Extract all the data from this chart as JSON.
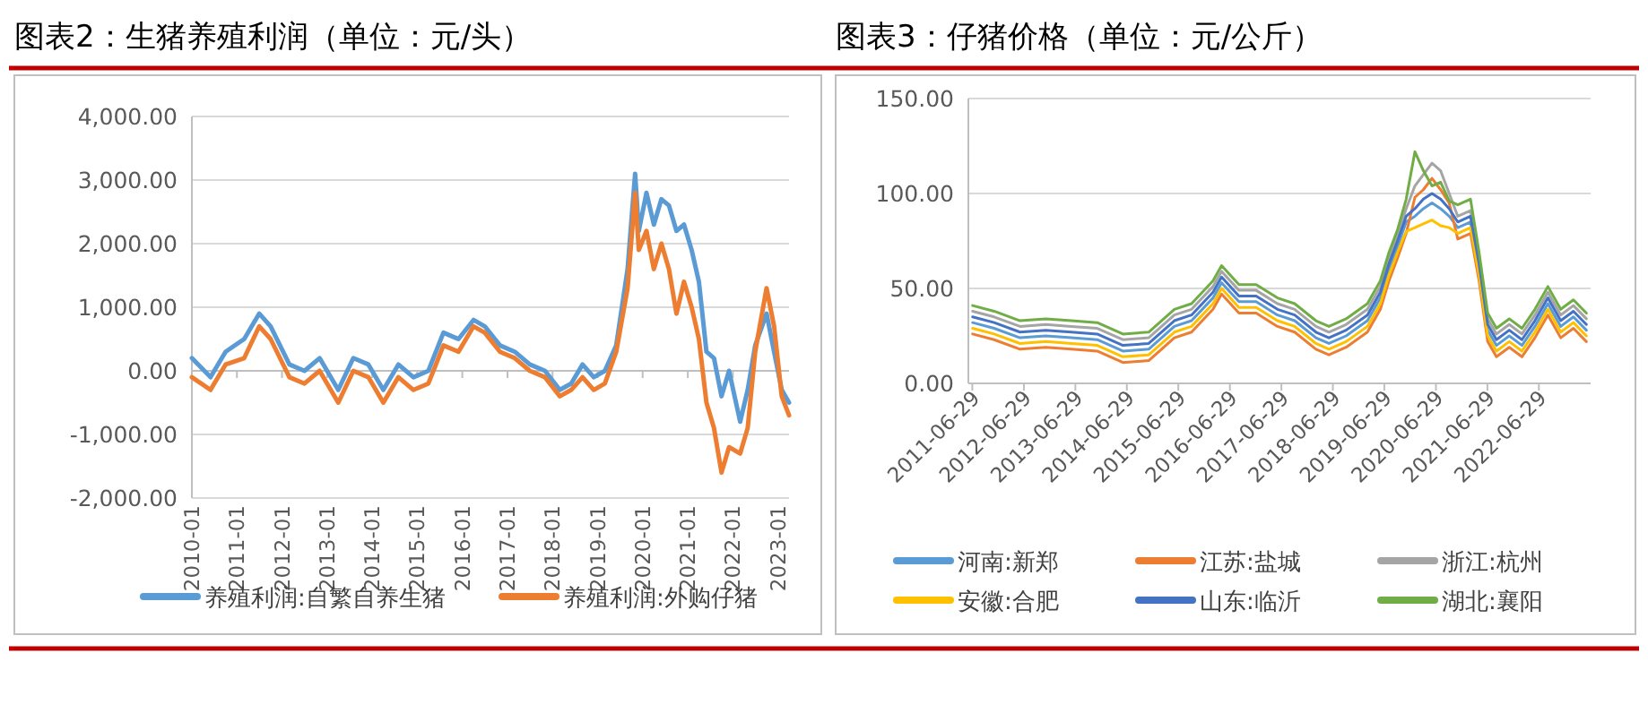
{
  "chart_data": [
    {
      "type": "line",
      "title": "图表2：生猪养殖利润（单位：元/头）",
      "grid": "y",
      "legend": "bottom",
      "xlim": [
        "2010-01",
        "2023-04"
      ],
      "xticks": [
        "2010-01",
        "2011-01",
        "2012-01",
        "2013-01",
        "2014-01",
        "2015-01",
        "2016-01",
        "2017-01",
        "2018-01",
        "2019-01",
        "2020-01",
        "2021-01",
        "2022-01",
        "2023-01"
      ],
      "ylim": [
        -2000,
        4000
      ],
      "yticks": [
        {
          "value": -2000,
          "label": "-2,000.00"
        },
        {
          "value": -1000,
          "label": "-1,000.00"
        },
        {
          "value": 0,
          "label": "0.00"
        },
        {
          "value": 1000,
          "label": "1,000.00"
        },
        {
          "value": 2000,
          "label": "2,000.00"
        },
        {
          "value": 3000,
          "label": "3,000.00"
        },
        {
          "value": 4000,
          "label": "4,000.00"
        }
      ],
      "x": [
        "2010-01",
        "2010-06",
        "2010-10",
        "2011-03",
        "2011-07",
        "2011-10",
        "2012-03",
        "2012-07",
        "2012-11",
        "2013-04",
        "2013-08",
        "2013-12",
        "2014-04",
        "2014-08",
        "2014-12",
        "2015-04",
        "2015-08",
        "2015-12",
        "2016-04",
        "2016-07",
        "2016-11",
        "2017-03",
        "2017-07",
        "2017-11",
        "2018-03",
        "2018-06",
        "2018-09",
        "2018-12",
        "2019-03",
        "2019-06",
        "2019-09",
        "2019-11",
        "2019-12",
        "2020-02",
        "2020-04",
        "2020-06",
        "2020-08",
        "2020-10",
        "2020-12",
        "2021-02",
        "2021-04",
        "2021-06",
        "2021-08",
        "2021-10",
        "2021-12",
        "2022-03",
        "2022-05",
        "2022-07",
        "2022-10",
        "2022-12",
        "2023-02",
        "2023-04"
      ],
      "series": [
        {
          "name": "养殖利润:自繁自养生猪",
          "color": "#5b9bd5",
          "values": [
            200,
            -100,
            300,
            500,
            900,
            700,
            100,
            0,
            200,
            -300,
            200,
            100,
            -300,
            100,
            -100,
            0,
            600,
            500,
            800,
            700,
            400,
            300,
            100,
            0,
            -300,
            -200,
            100,
            -100,
            0,
            400,
            1600,
            3100,
            2200,
            2800,
            2300,
            2700,
            2600,
            2200,
            2300,
            1900,
            1400,
            300,
            200,
            -400,
            0,
            -800,
            -300,
            400,
            900,
            300,
            -300,
            -500
          ]
        },
        {
          "name": "养殖利润:外购仔猪",
          "color": "#ed7d31",
          "values": [
            -100,
            -300,
            100,
            200,
            700,
            500,
            -100,
            -200,
            0,
            -500,
            0,
            -100,
            -500,
            -100,
            -300,
            -200,
            400,
            300,
            700,
            600,
            300,
            200,
            0,
            -100,
            -400,
            -300,
            -100,
            -300,
            -200,
            300,
            1300,
            2800,
            1900,
            2200,
            1600,
            2000,
            1600,
            900,
            1400,
            1000,
            500,
            -500,
            -900,
            -1600,
            -1200,
            -1300,
            -900,
            300,
            1300,
            700,
            -400,
            -700
          ]
        }
      ]
    },
    {
      "type": "line",
      "title": "图表3：仔猪价格（单位：元/公斤）",
      "grid": "y",
      "legend": "bottom",
      "xlim": [
        "2011-06-01",
        "2023-07-01"
      ],
      "xticks": [
        "2011-06-29",
        "2012-06-29",
        "2013-06-29",
        "2014-06-29",
        "2015-06-29",
        "2016-06-29",
        "2017-06-29",
        "2018-06-29",
        "2019-06-29",
        "2020-06-29",
        "2021-06-29",
        "2022-06-29"
      ],
      "ylim": [
        0,
        150
      ],
      "yticks": [
        {
          "value": 0,
          "label": "0.00"
        },
        {
          "value": 50,
          "label": "50.00"
        },
        {
          "value": 100,
          "label": "100.00"
        },
        {
          "value": 150,
          "label": "150.00"
        }
      ],
      "x": [
        "2011-07-01",
        "2011-12-01",
        "2012-06-01",
        "2012-12-01",
        "2013-06-01",
        "2013-12-01",
        "2014-06-01",
        "2014-12-01",
        "2015-06-01",
        "2015-10-01",
        "2016-03-01",
        "2016-05-01",
        "2016-09-01",
        "2017-01-01",
        "2017-06-01",
        "2017-10-01",
        "2018-03-01",
        "2018-06-01",
        "2018-10-01",
        "2019-03-01",
        "2019-06-01",
        "2019-08-01",
        "2019-10-01",
        "2019-12-01",
        "2020-02-01",
        "2020-04-01",
        "2020-06-01",
        "2020-08-01",
        "2020-10-01",
        "2020-12-01",
        "2021-03-01",
        "2021-05-01",
        "2021-07-01",
        "2021-09-01",
        "2021-12-01",
        "2022-03-01",
        "2022-06-01",
        "2022-09-01",
        "2022-12-01",
        "2023-03-01",
        "2023-06-01"
      ],
      "series": [
        {
          "name": "河南:新郑",
          "color": "#5b9bd5",
          "values": [
            32,
            29,
            24,
            25,
            24,
            23,
            17,
            18,
            30,
            33,
            45,
            53,
            43,
            43,
            36,
            33,
            24,
            21,
            25,
            33,
            45,
            60,
            72,
            85,
            88,
            92,
            95,
            92,
            88,
            82,
            85,
            60,
            28,
            20,
            25,
            20,
            30,
            42,
            30,
            35,
            28
          ]
        },
        {
          "name": "江苏:盐城",
          "color": "#ed7d31",
          "values": [
            26,
            23,
            18,
            19,
            18,
            17,
            11,
            12,
            24,
            27,
            39,
            47,
            37,
            37,
            30,
            27,
            18,
            15,
            19,
            27,
            39,
            54,
            66,
            79,
            98,
            102,
            108,
            102,
            95,
            76,
            79,
            54,
            22,
            14,
            19,
            14,
            24,
            36,
            24,
            29,
            22
          ]
        },
        {
          "name": "浙江:杭州",
          "color": "#a5a5a5",
          "values": [
            38,
            35,
            30,
            31,
            30,
            29,
            23,
            24,
            36,
            39,
            51,
            59,
            49,
            49,
            42,
            39,
            30,
            27,
            31,
            39,
            51,
            66,
            78,
            92,
            104,
            110,
            116,
            112,
            100,
            88,
            91,
            66,
            34,
            26,
            31,
            26,
            36,
            48,
            36,
            41,
            34
          ]
        },
        {
          "name": "安徽:合肥",
          "color": "#ffc000",
          "values": [
            29,
            26,
            21,
            22,
            21,
            20,
            14,
            15,
            27,
            30,
            42,
            50,
            40,
            40,
            33,
            30,
            21,
            18,
            22,
            30,
            42,
            57,
            69,
            80,
            82,
            84,
            86,
            83,
            82,
            79,
            82,
            57,
            25,
            17,
            22,
            17,
            27,
            39,
            27,
            32,
            25
          ]
        },
        {
          "name": "山东:临沂",
          "color": "#4472c4",
          "values": [
            35,
            32,
            27,
            28,
            27,
            26,
            20,
            21,
            33,
            36,
            48,
            56,
            46,
            46,
            39,
            36,
            27,
            24,
            28,
            36,
            48,
            63,
            75,
            88,
            92,
            97,
            100,
            97,
            92,
            85,
            88,
            63,
            31,
            23,
            28,
            23,
            33,
            45,
            33,
            38,
            31
          ]
        },
        {
          "name": "湖北:襄阳",
          "color": "#70ad47",
          "values": [
            41,
            38,
            33,
            34,
            33,
            32,
            26,
            27,
            39,
            42,
            54,
            62,
            52,
            52,
            45,
            42,
            33,
            30,
            34,
            42,
            54,
            69,
            81,
            97,
            122,
            112,
            104,
            106,
            96,
            94,
            97,
            69,
            37,
            29,
            34,
            29,
            39,
            51,
            39,
            44,
            37
          ]
        }
      ]
    }
  ]
}
